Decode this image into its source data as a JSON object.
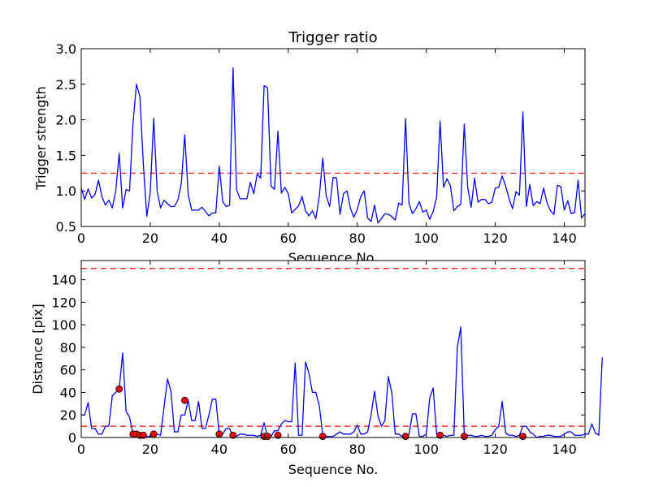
{
  "chart_data": [
    {
      "type": "line",
      "title": "Trigger ratio",
      "xlabel": "Sequence No.",
      "ylabel": "Trigger strength",
      "xlim": [
        0,
        146
      ],
      "ylim": [
        0.5,
        3.0
      ],
      "x_ticks": [
        "0",
        "20",
        "40",
        "60",
        "80",
        "100",
        "120",
        "140"
      ],
      "y_ticks": [
        "0.5",
        "1.0",
        "1.5",
        "2.0",
        "2.5",
        "3.0"
      ],
      "grid": false,
      "series": [
        {
          "color": "#0000ff",
          "values": [
            1.04,
            0.88,
            1.03,
            0.9,
            0.95,
            1.15,
            0.92,
            0.8,
            0.87,
            0.76,
            1.0,
            1.53,
            0.76,
            1.02,
            1.0,
            1.95,
            2.5,
            2.33,
            1.37,
            0.64,
            0.98,
            2.02,
            1.0,
            0.76,
            0.87,
            0.82,
            0.78,
            0.78,
            0.87,
            1.1,
            1.79,
            0.95,
            0.73,
            0.73,
            0.73,
            0.77,
            0.71,
            0.65,
            0.69,
            0.69,
            1.35,
            0.85,
            0.78,
            0.8,
            2.73,
            1.02,
            0.89,
            0.89,
            0.89,
            1.12,
            0.96,
            1.24,
            1.18,
            2.48,
            2.45,
            1.07,
            1.02,
            1.84,
            0.97,
            1.05,
            0.96,
            0.69,
            0.74,
            0.79,
            0.92,
            0.72,
            0.65,
            0.72,
            0.61,
            0.93,
            1.46,
            0.93,
            0.78,
            1.19,
            1.18,
            0.67,
            0.96,
            1.0,
            0.76,
            0.63,
            0.74,
            0.92,
            1.0,
            0.62,
            0.57,
            0.8,
            0.55,
            0.61,
            0.68,
            0.67,
            0.64,
            0.59,
            0.83,
            0.8,
            2.02,
            0.82,
            0.68,
            0.75,
            0.85,
            0.7,
            0.73,
            0.6,
            0.71,
            0.91,
            1.98,
            1.05,
            1.17,
            1.07,
            0.72,
            0.78,
            0.81,
            1.94,
            1.05,
            0.77,
            1.18,
            0.84,
            0.88,
            0.88,
            0.82,
            0.84,
            1.04,
            1.05,
            1.21,
            1.07,
            0.89,
            0.75,
            0.99,
            0.94,
            2.11,
            0.78,
            1.09,
            0.79,
            0.85,
            0.82,
            1.04,
            0.83,
            0.72,
            0.67,
            1.08,
            1.06,
            0.73,
            0.86,
            0.68,
            0.7,
            1.15,
            0.62,
            0.68
          ]
        }
      ],
      "hlines": [
        {
          "y": 1.25,
          "color": "#ff0000",
          "style": "dashed"
        }
      ]
    },
    {
      "type": "line",
      "xlabel": "Sequence No.",
      "ylabel": "Distance [pix]",
      "xlim": [
        0,
        146
      ],
      "ylim": [
        0,
        157
      ],
      "x_ticks": [
        "0",
        "20",
        "40",
        "60",
        "80",
        "100",
        "120",
        "140"
      ],
      "y_ticks": [
        "0",
        "20",
        "40",
        "60",
        "80",
        "100",
        "120",
        "140"
      ],
      "grid": false,
      "series": [
        {
          "color": "#0000ff",
          "values": [
            20,
            20,
            31,
            8,
            8,
            3,
            3,
            10,
            10,
            37,
            40,
            43,
            75,
            23,
            18,
            3,
            3,
            2,
            2,
            1,
            1,
            3,
            3,
            2,
            27,
            52,
            41,
            5,
            5,
            20,
            20,
            33,
            15,
            15,
            32,
            8,
            8,
            20,
            34,
            34,
            3,
            3,
            8,
            8,
            1,
            1,
            3,
            3,
            2,
            2,
            2,
            1,
            2,
            13,
            1,
            1,
            6,
            6,
            12,
            15,
            14,
            14,
            66,
            2,
            2,
            67,
            57,
            40,
            40,
            28,
            2,
            1,
            1,
            1,
            3,
            5,
            3,
            3,
            3,
            5,
            11,
            3,
            3,
            5,
            20,
            41,
            19,
            10,
            15,
            54,
            40,
            3,
            3,
            1,
            1,
            3,
            21,
            21,
            1,
            1,
            3,
            35,
            44,
            3,
            3,
            2,
            1,
            2,
            2,
            80,
            98,
            3,
            2,
            2,
            1,
            1,
            2,
            1,
            1,
            2,
            7,
            10,
            32,
            4,
            2,
            2,
            1,
            2,
            10,
            10,
            5,
            3,
            0,
            1,
            1,
            2,
            2,
            1,
            1,
            1,
            3,
            5,
            5,
            2,
            2,
            2,
            3,
            3,
            12,
            4,
            2,
            71
          ]
        }
      ],
      "markers": {
        "color": "#ff0000",
        "x": [
          11,
          15,
          16,
          17,
          18,
          21,
          30,
          40,
          44,
          53,
          54,
          57,
          70,
          94,
          104,
          111,
          128
        ],
        "y": [
          43,
          3,
          3,
          2,
          2,
          3,
          33,
          3,
          2,
          1,
          1,
          2,
          1,
          1,
          2,
          1,
          1
        ]
      },
      "hlines": [
        {
          "y": 150,
          "color": "#ff0000",
          "style": "dashed"
        },
        {
          "y": 10,
          "color": "#ff0000",
          "style": "dashed"
        }
      ]
    }
  ]
}
